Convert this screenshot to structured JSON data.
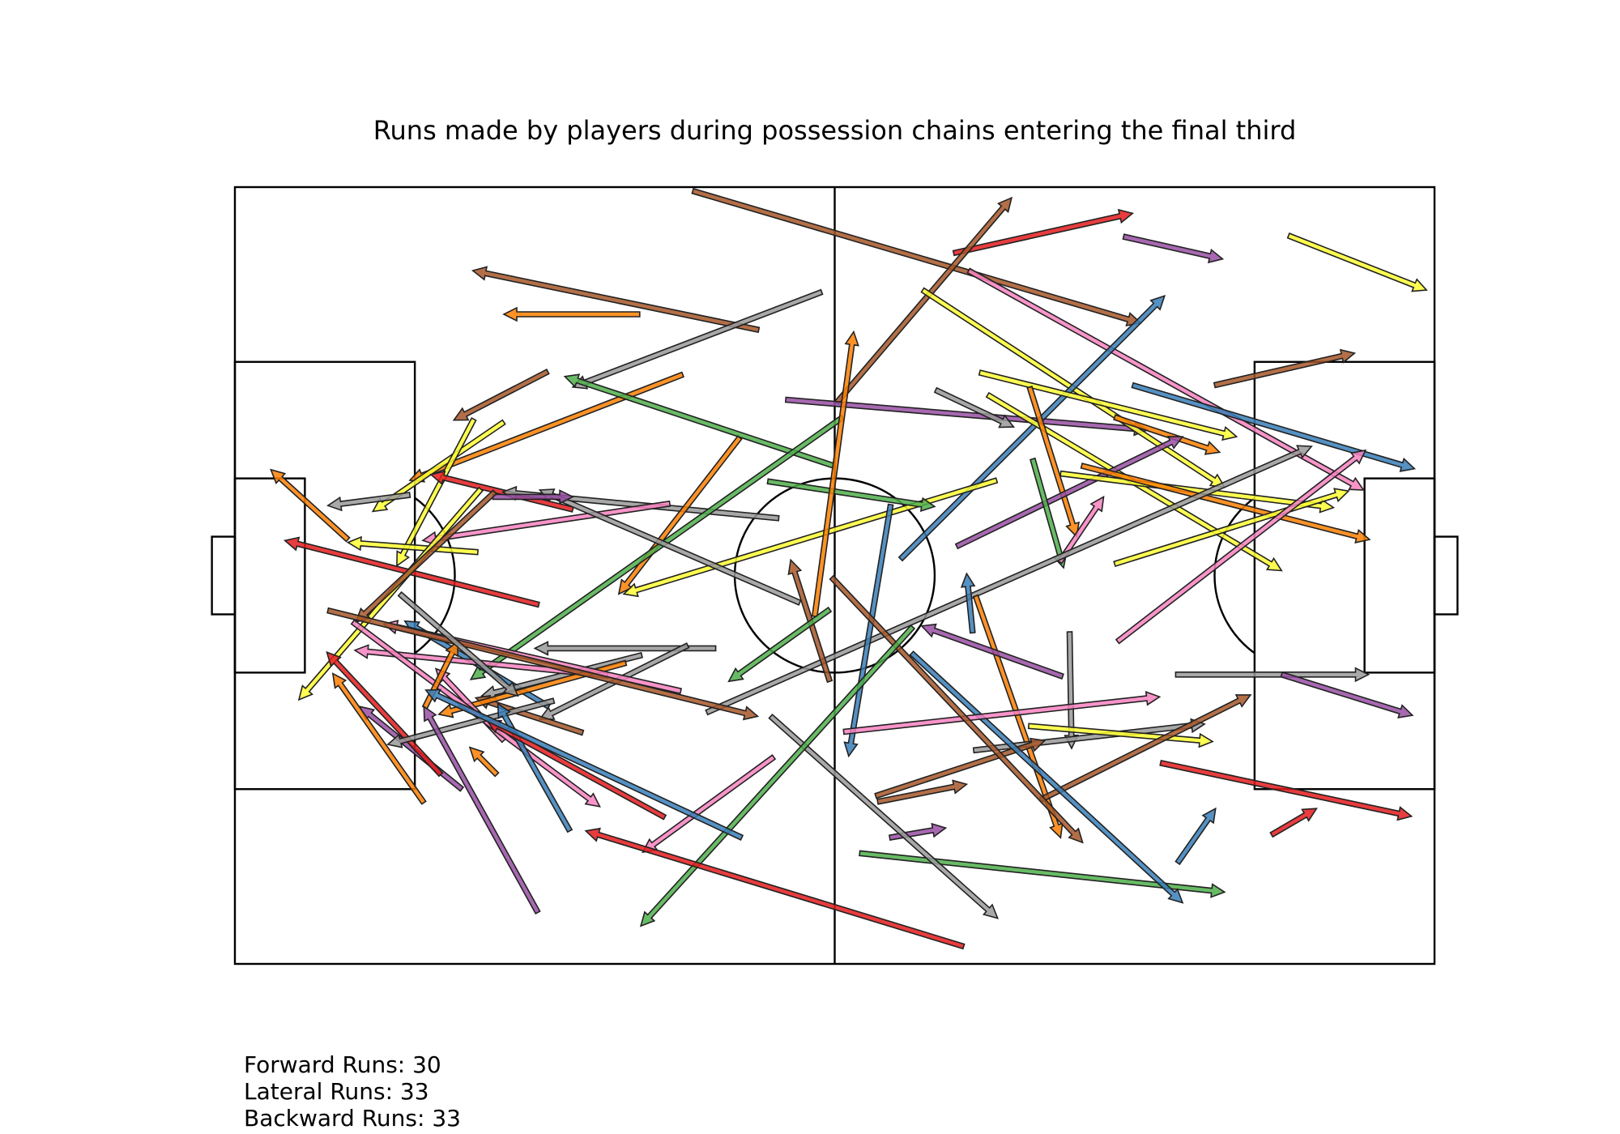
{
  "chart_data": {
    "type": "pitch-arrows",
    "title": "Runs made by players during possession chains entering the final third",
    "pitch": {
      "length": 120,
      "width": 80
    },
    "palette": {
      "red": "#e41a1c",
      "blue": "#377eb8",
      "green": "#4daf4a",
      "purple": "#984ea3",
      "orange": "#ff7f00",
      "yellow": "#ffff33",
      "brown": "#a65628",
      "pink": "#f781bf",
      "grey": "#999999"
    },
    "runs": [
      {
        "x1": 45.8,
        "y1": 0.4,
        "x2": 90.6,
        "y2": 14.0,
        "color": "brown"
      },
      {
        "x1": 71.9,
        "y1": 6.8,
        "x2": 89.8,
        "y2": 2.7,
        "color": "red"
      },
      {
        "x1": 88.9,
        "y1": 5.1,
        "x2": 98.8,
        "y2": 7.4,
        "color": "purple"
      },
      {
        "x1": 105.4,
        "y1": 5.0,
        "x2": 119.2,
        "y2": 10.6,
        "color": "yellow"
      },
      {
        "x1": 52.4,
        "y1": 14.7,
        "x2": 23.8,
        "y2": 8.6,
        "color": "brown"
      },
      {
        "x1": 40.5,
        "y1": 13.1,
        "x2": 26.9,
        "y2": 13.1,
        "color": "orange"
      },
      {
        "x1": 58.7,
        "y1": 10.8,
        "x2": 33.8,
        "y2": 20.6,
        "color": "grey"
      },
      {
        "x1": 31.3,
        "y1": 19.0,
        "x2": 21.9,
        "y2": 24.0,
        "color": "brown"
      },
      {
        "x1": 44.8,
        "y1": 19.3,
        "x2": 17.5,
        "y2": 30.2,
        "color": "orange"
      },
      {
        "x1": 60.2,
        "y1": 22.2,
        "x2": 77.7,
        "y2": 1.1,
        "color": "brown"
      },
      {
        "x1": 55.1,
        "y1": 21.9,
        "x2": 91.3,
        "y2": 25.0,
        "color": "purple"
      },
      {
        "x1": 68.8,
        "y1": 10.6,
        "x2": 99.0,
        "y2": 30.9,
        "color": "yellow"
      },
      {
        "x1": 73.4,
        "y1": 8.6,
        "x2": 112.9,
        "y2": 31.2,
        "color": "pink"
      },
      {
        "x1": 66.6,
        "y1": 38.3,
        "x2": 93.0,
        "y2": 11.2,
        "color": "blue"
      },
      {
        "x1": 98.0,
        "y1": 20.4,
        "x2": 112.0,
        "y2": 17.1,
        "color": "brown"
      },
      {
        "x1": 59.9,
        "y1": 28.7,
        "x2": 33.0,
        "y2": 19.5,
        "color": "green"
      },
      {
        "x1": 26.9,
        "y1": 24.2,
        "x2": 13.8,
        "y2": 33.4,
        "color": "yellow"
      },
      {
        "x1": 17.5,
        "y1": 31.7,
        "x2": 9.3,
        "y2": 32.8,
        "color": "grey"
      },
      {
        "x1": 11.3,
        "y1": 36.3,
        "x2": 3.6,
        "y2": 29.1,
        "color": "orange"
      },
      {
        "x1": 23.9,
        "y1": 23.9,
        "x2": 16.2,
        "y2": 39.0,
        "color": "yellow"
      },
      {
        "x1": 33.8,
        "y1": 33.2,
        "x2": 19.6,
        "y2": 29.6,
        "color": "red"
      },
      {
        "x1": 54.4,
        "y1": 34.1,
        "x2": 26.8,
        "y2": 31.4,
        "color": "grey"
      },
      {
        "x1": 43.5,
        "y1": 32.6,
        "x2": 18.8,
        "y2": 36.4,
        "color": "pink"
      },
      {
        "x1": 24.3,
        "y1": 37.6,
        "x2": 11.3,
        "y2": 36.6,
        "color": "yellow"
      },
      {
        "x1": 50.5,
        "y1": 25.8,
        "x2": 38.4,
        "y2": 41.9,
        "color": "orange"
      },
      {
        "x1": 60.8,
        "y1": 23.7,
        "x2": 23.6,
        "y2": 50.7,
        "color": "green"
      },
      {
        "x1": 76.2,
        "y1": 30.2,
        "x2": 38.9,
        "y2": 41.9,
        "color": "yellow"
      },
      {
        "x1": 53.3,
        "y1": 30.3,
        "x2": 70.0,
        "y2": 32.9,
        "color": "green"
      },
      {
        "x1": 58.0,
        "y1": 44.2,
        "x2": 61.9,
        "y2": 14.9,
        "color": "orange"
      },
      {
        "x1": 70.1,
        "y1": 20.9,
        "x2": 77.9,
        "y2": 24.7,
        "color": "grey"
      },
      {
        "x1": 74.5,
        "y1": 19.1,
        "x2": 100.2,
        "y2": 25.7,
        "color": "yellow"
      },
      {
        "x1": 75.3,
        "y1": 21.4,
        "x2": 104.7,
        "y2": 39.5,
        "color": "yellow"
      },
      {
        "x1": 79.5,
        "y1": 20.6,
        "x2": 84.2,
        "y2": 36.0,
        "color": "orange"
      },
      {
        "x1": 89.8,
        "y1": 20.4,
        "x2": 118.0,
        "y2": 29.0,
        "color": "blue"
      },
      {
        "x1": 88.0,
        "y1": 23.7,
        "x2": 98.5,
        "y2": 27.3,
        "color": "orange"
      },
      {
        "x1": 72.2,
        "y1": 37.0,
        "x2": 94.8,
        "y2": 25.7,
        "color": "purple"
      },
      {
        "x1": 82.6,
        "y1": 29.5,
        "x2": 109.9,
        "y2": 33.0,
        "color": "yellow"
      },
      {
        "x1": 84.7,
        "y1": 28.7,
        "x2": 113.5,
        "y2": 36.3,
        "color": "orange"
      },
      {
        "x1": 88.0,
        "y1": 38.8,
        "x2": 111.4,
        "y2": 31.3,
        "color": "yellow"
      },
      {
        "x1": 79.8,
        "y1": 28.0,
        "x2": 82.9,
        "y2": 39.2,
        "color": "green"
      },
      {
        "x1": 82.5,
        "y1": 38.6,
        "x2": 86.9,
        "y2": 31.9,
        "color": "pink"
      },
      {
        "x1": 94.1,
        "y1": 50.2,
        "x2": 113.4,
        "y2": 50.2,
        "color": "grey"
      },
      {
        "x1": 88.3,
        "y1": 46.8,
        "x2": 113.1,
        "y2": 27.1,
        "color": "pink"
      },
      {
        "x1": 47.2,
        "y1": 54.1,
        "x2": 107.7,
        "y2": 26.7,
        "color": "grey"
      },
      {
        "x1": 65.6,
        "y1": 32.7,
        "x2": 61.4,
        "y2": 58.6,
        "color": "blue"
      },
      {
        "x1": 73.8,
        "y1": 45.9,
        "x2": 73.2,
        "y2": 39.8,
        "color": "blue"
      },
      {
        "x1": 74.1,
        "y1": 42.1,
        "x2": 82.6,
        "y2": 67.0,
        "color": "orange"
      },
      {
        "x1": 83.5,
        "y1": 45.8,
        "x2": 83.7,
        "y2": 57.8,
        "color": "grey"
      },
      {
        "x1": 94.3,
        "y1": 69.6,
        "x2": 98.1,
        "y2": 64.0,
        "color": "blue"
      },
      {
        "x1": 73.9,
        "y1": 58.0,
        "x2": 97.0,
        "y2": 55.3,
        "color": "grey"
      },
      {
        "x1": 79.4,
        "y1": 55.5,
        "x2": 97.8,
        "y2": 57.1,
        "color": "yellow"
      },
      {
        "x1": 64.3,
        "y1": 63.3,
        "x2": 73.2,
        "y2": 61.5,
        "color": "brown"
      },
      {
        "x1": 65.5,
        "y1": 67.0,
        "x2": 71.1,
        "y2": 66.0,
        "color": "purple"
      },
      {
        "x1": 62.5,
        "y1": 68.6,
        "x2": 99.0,
        "y2": 72.6,
        "color": "green"
      },
      {
        "x1": 92.6,
        "y1": 59.3,
        "x2": 117.7,
        "y2": 64.8,
        "color": "red"
      },
      {
        "x1": 103.7,
        "y1": 66.7,
        "x2": 108.2,
        "y2": 64.0,
        "color": "red"
      },
      {
        "x1": 104.7,
        "y1": 50.2,
        "x2": 117.8,
        "y2": 54.4,
        "color": "purple"
      },
      {
        "x1": 80.6,
        "y1": 63.1,
        "x2": 101.6,
        "y2": 52.3,
        "color": "brown"
      },
      {
        "x1": 82.8,
        "y1": 50.4,
        "x2": 68.7,
        "y2": 45.2,
        "color": "purple"
      },
      {
        "x1": 64.1,
        "y1": 62.7,
        "x2": 81.0,
        "y2": 57.0,
        "color": "brown"
      },
      {
        "x1": 67.7,
        "y1": 48.0,
        "x2": 94.8,
        "y2": 73.7,
        "color": "blue"
      },
      {
        "x1": 60.9,
        "y1": 56.1,
        "x2": 92.5,
        "y2": 52.5,
        "color": "pink"
      },
      {
        "x1": 59.7,
        "y1": 40.2,
        "x2": 84.8,
        "y2": 67.5,
        "color": "brown"
      },
      {
        "x1": 53.6,
        "y1": 54.5,
        "x2": 76.3,
        "y2": 75.3,
        "color": "grey"
      },
      {
        "x1": 67.8,
        "y1": 45.3,
        "x2": 40.6,
        "y2": 76.1,
        "color": "green"
      },
      {
        "x1": 56.5,
        "y1": 42.8,
        "x2": 30.5,
        "y2": 31.2,
        "color": "grey"
      },
      {
        "x1": 59.5,
        "y1": 50.9,
        "x2": 55.6,
        "y2": 38.4,
        "color": "brown"
      },
      {
        "x1": 25.8,
        "y1": 31.9,
        "x2": 33.8,
        "y2": 31.9,
        "color": "purple"
      },
      {
        "x1": 59.5,
        "y1": 43.5,
        "x2": 49.4,
        "y2": 50.9,
        "color": "green"
      },
      {
        "x1": 53.9,
        "y1": 58.7,
        "x2": 40.8,
        "y2": 68.5,
        "color": "pink"
      },
      {
        "x1": 30.4,
        "y1": 43.0,
        "x2": 5.0,
        "y2": 36.4,
        "color": "red"
      },
      {
        "x1": 48.1,
        "y1": 47.5,
        "x2": 30.0,
        "y2": 47.5,
        "color": "grey"
      },
      {
        "x1": 24.6,
        "y1": 31.1,
        "x2": 6.4,
        "y2": 52.8,
        "color": "yellow"
      },
      {
        "x1": 26.0,
        "y1": 31.4,
        "x2": 12.1,
        "y2": 44.8,
        "color": "brown"
      },
      {
        "x1": 45.3,
        "y1": 47.2,
        "x2": 30.5,
        "y2": 54.8,
        "color": "grey"
      },
      {
        "x1": 31.4,
        "y1": 53.5,
        "x2": 17.0,
        "y2": 44.7,
        "color": "blue"
      },
      {
        "x1": 40.7,
        "y1": 48.2,
        "x2": 24.7,
        "y2": 52.4,
        "color": "grey"
      },
      {
        "x1": 37.3,
        "y1": 50.3,
        "x2": 12.0,
        "y2": 47.7,
        "color": "pink"
      },
      {
        "x1": 34.8,
        "y1": 56.2,
        "x2": 24.1,
        "y2": 52.6,
        "color": "brown"
      },
      {
        "x1": 39.1,
        "y1": 49.0,
        "x2": 20.4,
        "y2": 54.3,
        "color": "orange"
      },
      {
        "x1": 44.6,
        "y1": 51.9,
        "x2": 14.9,
        "y2": 45.0,
        "color": "pink"
      },
      {
        "x1": 26.9,
        "y1": 57.0,
        "x2": 20.1,
        "y2": 49.6,
        "color": "pink"
      },
      {
        "x1": 22.7,
        "y1": 62.0,
        "x2": 12.5,
        "y2": 53.5,
        "color": "purple"
      },
      {
        "x1": 20.6,
        "y1": 60.5,
        "x2": 9.2,
        "y2": 47.9,
        "color": "red"
      },
      {
        "x1": 11.8,
        "y1": 44.8,
        "x2": 36.5,
        "y2": 63.8,
        "color": "pink"
      },
      {
        "x1": 9.3,
        "y1": 43.6,
        "x2": 52.3,
        "y2": 54.5,
        "color": "brown"
      },
      {
        "x1": 26.2,
        "y1": 60.5,
        "x2": 23.5,
        "y2": 57.7,
        "color": "orange"
      },
      {
        "x1": 19.0,
        "y1": 53.6,
        "x2": 22.3,
        "y2": 46.8,
        "color": "orange"
      },
      {
        "x1": 31.9,
        "y1": 52.9,
        "x2": 15.3,
        "y2": 57.4,
        "color": "grey"
      },
      {
        "x1": 18.9,
        "y1": 63.4,
        "x2": 9.8,
        "y2": 50.1,
        "color": "orange"
      },
      {
        "x1": 30.3,
        "y1": 74.7,
        "x2": 18.9,
        "y2": 53.5,
        "color": "purple"
      },
      {
        "x1": 33.5,
        "y1": 66.3,
        "x2": 26.3,
        "y2": 53.2,
        "color": "blue"
      },
      {
        "x1": 43.0,
        "y1": 64.9,
        "x2": 25.2,
        "y2": 54.9,
        "color": "red"
      },
      {
        "x1": 50.7,
        "y1": 67.0,
        "x2": 19.1,
        "y2": 51.8,
        "color": "blue"
      },
      {
        "x1": 72.9,
        "y1": 78.2,
        "x2": 35.1,
        "y2": 66.3,
        "color": "red"
      },
      {
        "x1": 16.5,
        "y1": 41.9,
        "x2": 28.3,
        "y2": 52.4,
        "color": "grey"
      }
    ],
    "counts": [
      {
        "label": "Forward Runs",
        "value": 30
      },
      {
        "label": "Lateral Runs",
        "value": 33
      },
      {
        "label": "Backward Runs",
        "value": 33
      }
    ]
  },
  "stats": {
    "forward": "Forward Runs: 30",
    "lateral": "Lateral Runs: 33",
    "backward": "Backward Runs: 33"
  }
}
